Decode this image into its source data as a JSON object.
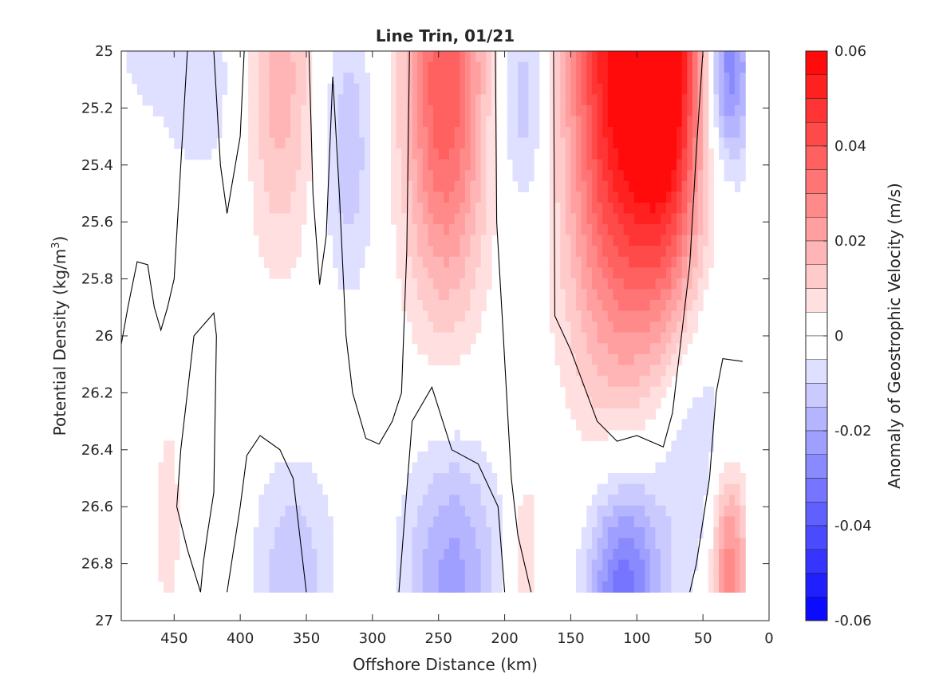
{
  "chart_data": {
    "type": "contour",
    "title": "Line Trin, 01/21",
    "xlabel": "Offshore Distance (km)",
    "ylabel": "Potential Density (kg/m",
    "ylabel_sup": "3",
    "ylabel_tail": ")",
    "colorbar_label": "Anomaly of Geostrophic Velocity (m/s)",
    "x_reversed": true,
    "y_reversed": true,
    "xlim": [
      490,
      0
    ],
    "ylim": [
      25,
      27
    ],
    "x_ticks": [
      450,
      400,
      350,
      300,
      250,
      200,
      150,
      100,
      50,
      0
    ],
    "y_ticks": [
      25,
      25.2,
      25.4,
      25.6,
      25.8,
      26,
      26.2,
      26.4,
      26.6,
      26.8,
      27
    ],
    "colorbar_range": [
      -0.06,
      0.06
    ],
    "colorbar_step": 0.005,
    "colorbar_ticks": [
      0.06,
      0.04,
      0.02,
      0,
      -0.02,
      -0.04,
      -0.06
    ],
    "colors": {
      "positive": "#ff0000",
      "negative": "#0000ff",
      "zero": "#ffffff",
      "contour": "#000000"
    },
    "features": [
      {
        "x": 110,
        "y": 25.0,
        "value": 0.06,
        "sx": 30,
        "sy": 0.75
      },
      {
        "x": 75,
        "y": 25.05,
        "value": 0.04,
        "sx": 18,
        "sy": 0.55
      },
      {
        "x": 245,
        "y": 25.1,
        "value": 0.04,
        "sx": 22,
        "sy": 0.55
      },
      {
        "x": 370,
        "y": 25.1,
        "value": 0.018,
        "sx": 18,
        "sy": 0.45
      },
      {
        "x": 318,
        "y": 25.35,
        "value": -0.014,
        "sx": 14,
        "sy": 0.35
      },
      {
        "x": 185,
        "y": 25.15,
        "value": -0.015,
        "sx": 15,
        "sy": 0.3
      },
      {
        "x": 30,
        "y": 25.05,
        "value": -0.03,
        "sx": 12,
        "sy": 0.25
      },
      {
        "x": 110,
        "y": 26.9,
        "value": -0.035,
        "sx": 20,
        "sy": 0.3
      },
      {
        "x": 240,
        "y": 26.85,
        "value": -0.022,
        "sx": 25,
        "sy": 0.35
      },
      {
        "x": 360,
        "y": 26.85,
        "value": -0.014,
        "sx": 22,
        "sy": 0.3
      },
      {
        "x": 60,
        "y": 26.4,
        "value": -0.012,
        "sx": 25,
        "sy": 0.35
      },
      {
        "x": 30,
        "y": 26.8,
        "value": 0.03,
        "sx": 10,
        "sy": 0.25
      },
      {
        "x": 185,
        "y": 26.8,
        "value": 0.01,
        "sx": 8,
        "sy": 0.25
      },
      {
        "x": 455,
        "y": 26.65,
        "value": 0.008,
        "sx": 8,
        "sy": 0.3
      },
      {
        "x": 430,
        "y": 25.1,
        "value": -0.008,
        "sx": 25,
        "sy": 0.3
      },
      {
        "x": 470,
        "y": 25.0,
        "value": -0.006,
        "sx": 20,
        "sy": 0.15
      },
      {
        "x": 300,
        "y": 26.75,
        "value": 0.006,
        "sx": 6,
        "sy": 0.15
      }
    ],
    "zero_contours": [
      [
        [
          490,
          26.03
        ],
        [
          485,
          25.9
        ],
        [
          478,
          25.74
        ],
        [
          470,
          25.75
        ],
        [
          465,
          25.9
        ],
        [
          460,
          25.98
        ],
        [
          455,
          25.9
        ],
        [
          450,
          25.8
        ],
        [
          445,
          25.4
        ],
        [
          440,
          25.0
        ]
      ],
      [
        [
          420,
          25.0
        ],
        [
          415,
          25.4
        ],
        [
          410,
          25.57
        ],
        [
          400,
          25.3
        ],
        [
          397,
          25.0
        ]
      ],
      [
        [
          348,
          25.0
        ],
        [
          345,
          25.5
        ],
        [
          340,
          25.82
        ],
        [
          335,
          25.65
        ],
        [
          330,
          25.09
        ],
        [
          325,
          25.5
        ],
        [
          320,
          26.0
        ],
        [
          315,
          26.2
        ],
        [
          305,
          26.36
        ],
        [
          295,
          26.38
        ],
        [
          285,
          26.3
        ],
        [
          278,
          26.2
        ],
        [
          274,
          25.7
        ],
        [
          272,
          25.0
        ]
      ],
      [
        [
          207,
          25.0
        ],
        [
          206,
          25.6
        ],
        [
          201,
          26.0
        ],
        [
          195,
          26.5
        ],
        [
          190,
          26.7
        ],
        [
          180,
          26.9
        ]
      ],
      [
        [
          163,
          25.0
        ],
        [
          162,
          25.93
        ],
        [
          150,
          26.05
        ],
        [
          130,
          26.3
        ],
        [
          115,
          26.37
        ],
        [
          100,
          26.35
        ],
        [
          80,
          26.39
        ],
        [
          73,
          26.27
        ],
        [
          60,
          25.75
        ],
        [
          55,
          25.35
        ],
        [
          50,
          25.0
        ]
      ],
      [
        [
          430,
          26.9
        ],
        [
          428,
          26.8
        ],
        [
          425,
          26.7
        ],
        [
          420,
          26.55
        ],
        [
          418,
          26.0
        ],
        [
          420,
          25.92
        ],
        [
          435,
          26.0
        ],
        [
          440,
          26.2
        ],
        [
          445,
          26.4
        ],
        [
          448,
          26.6
        ],
        [
          440,
          26.75
        ],
        [
          430,
          26.9
        ]
      ],
      [
        [
          410,
          26.9
        ],
        [
          400,
          26.6
        ],
        [
          395,
          26.42
        ],
        [
          385,
          26.35
        ],
        [
          370,
          26.4
        ],
        [
          360,
          26.5
        ],
        [
          350,
          26.9
        ]
      ],
      [
        [
          280,
          26.9
        ],
        [
          275,
          26.6
        ],
        [
          270,
          26.3
        ],
        [
          255,
          26.18
        ],
        [
          240,
          26.4
        ],
        [
          220,
          26.45
        ],
        [
          205,
          26.6
        ],
        [
          200,
          26.9
        ]
      ],
      [
        [
          60,
          26.9
        ],
        [
          55,
          26.8
        ],
        [
          45,
          26.5
        ],
        [
          40,
          26.2
        ],
        [
          35,
          26.08
        ],
        [
          20,
          26.09
        ]
      ]
    ]
  }
}
